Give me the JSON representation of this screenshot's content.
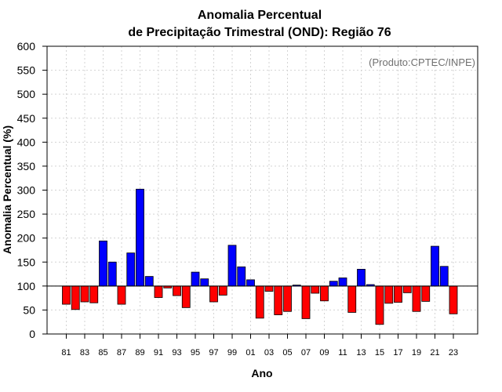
{
  "chart_data": {
    "type": "bar",
    "title_line1": "Anomalia Percentual",
    "title_line2": "de Precipitação Trimestral (OND): Região 76",
    "xlabel": "Ano",
    "ylabel": "Anomalia Percentual (%)",
    "credit": "(Produto:CPTEC/INPE)",
    "ylim": [
      0,
      600
    ],
    "yticks": [
      0,
      50,
      100,
      150,
      200,
      250,
      300,
      350,
      400,
      450,
      500,
      550,
      600
    ],
    "baseline": 100,
    "grid": true,
    "categories": [
      "81",
      "82",
      "83",
      "84",
      "85",
      "86",
      "87",
      "88",
      "89",
      "90",
      "91",
      "92",
      "93",
      "94",
      "95",
      "96",
      "97",
      "98",
      "99",
      "00",
      "01",
      "02",
      "03",
      "04",
      "05",
      "06",
      "07",
      "08",
      "09",
      "10",
      "11",
      "12",
      "13",
      "14",
      "15",
      "16",
      "17",
      "18",
      "19",
      "20",
      "21",
      "22",
      "23"
    ],
    "xtick_labels": [
      "81",
      "83",
      "85",
      "87",
      "89",
      "91",
      "93",
      "95",
      "97",
      "99",
      "01",
      "03",
      "05",
      "07",
      "09",
      "11",
      "13",
      "15",
      "17",
      "19",
      "21",
      "23"
    ],
    "values": [
      62,
      51,
      67,
      65,
      194,
      150,
      62,
      169,
      302,
      120,
      76,
      96,
      80,
      55,
      129,
      115,
      67,
      81,
      185,
      140,
      113,
      33,
      89,
      40,
      47,
      102,
      32,
      85,
      69,
      110,
      117,
      45,
      135,
      103,
      20,
      64,
      66,
      86,
      47,
      68,
      183,
      141,
      42
    ],
    "colors": {
      "above": "#0000ff",
      "below": "#ff0000",
      "border": "#000000",
      "grid": "#d3d3d3"
    }
  }
}
